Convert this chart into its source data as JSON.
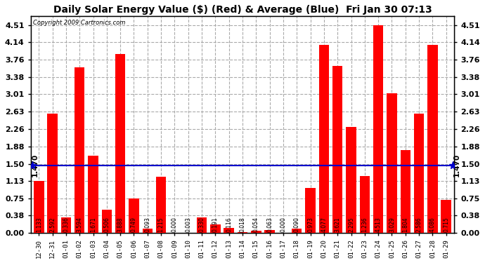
{
  "title": "Daily Solar Energy Value ($) (Red) & Average (Blue)  Fri Jan 30 07:13",
  "copyright": "Copyright 2009 Cartronics.com",
  "average_line": 1.47,
  "ylim": [
    0.0,
    4.7
  ],
  "yticks": [
    0.0,
    0.38,
    0.75,
    1.13,
    1.5,
    1.88,
    2.26,
    2.63,
    3.01,
    3.38,
    3.76,
    4.14,
    4.51
  ],
  "bar_color": "#FF0000",
  "avg_color": "#0000CC",
  "fig_bg_color": "#FFFFFF",
  "plot_bg_color": "#FFFFFF",
  "grid_color": "#AAAAAA",
  "categories": [
    "12-30",
    "12-31",
    "01-01",
    "01-02",
    "01-03",
    "01-04",
    "01-05",
    "01-06",
    "01-07",
    "01-08",
    "01-09",
    "01-10",
    "01-11",
    "01-12",
    "01-13",
    "01-14",
    "01-15",
    "01-16",
    "01-17",
    "01-18",
    "01-19",
    "01-20",
    "01-21",
    "01-22",
    "01-23",
    "01-24",
    "01-25",
    "01-26",
    "01-27",
    "01-28",
    "01-29"
  ],
  "values": [
    1.133,
    2.592,
    0.336,
    3.594,
    1.671,
    0.506,
    3.888,
    0.749,
    0.093,
    1.215,
    0.0,
    0.003,
    0.33,
    0.191,
    0.116,
    0.018,
    0.054,
    0.063,
    0.0,
    0.09,
    0.973,
    4.077,
    3.621,
    2.295,
    1.236,
    4.513,
    3.029,
    1.804,
    2.586,
    4.086,
    0.715
  ],
  "label_fontsize": 5.5,
  "tick_fontsize": 8,
  "title_fontsize": 10
}
